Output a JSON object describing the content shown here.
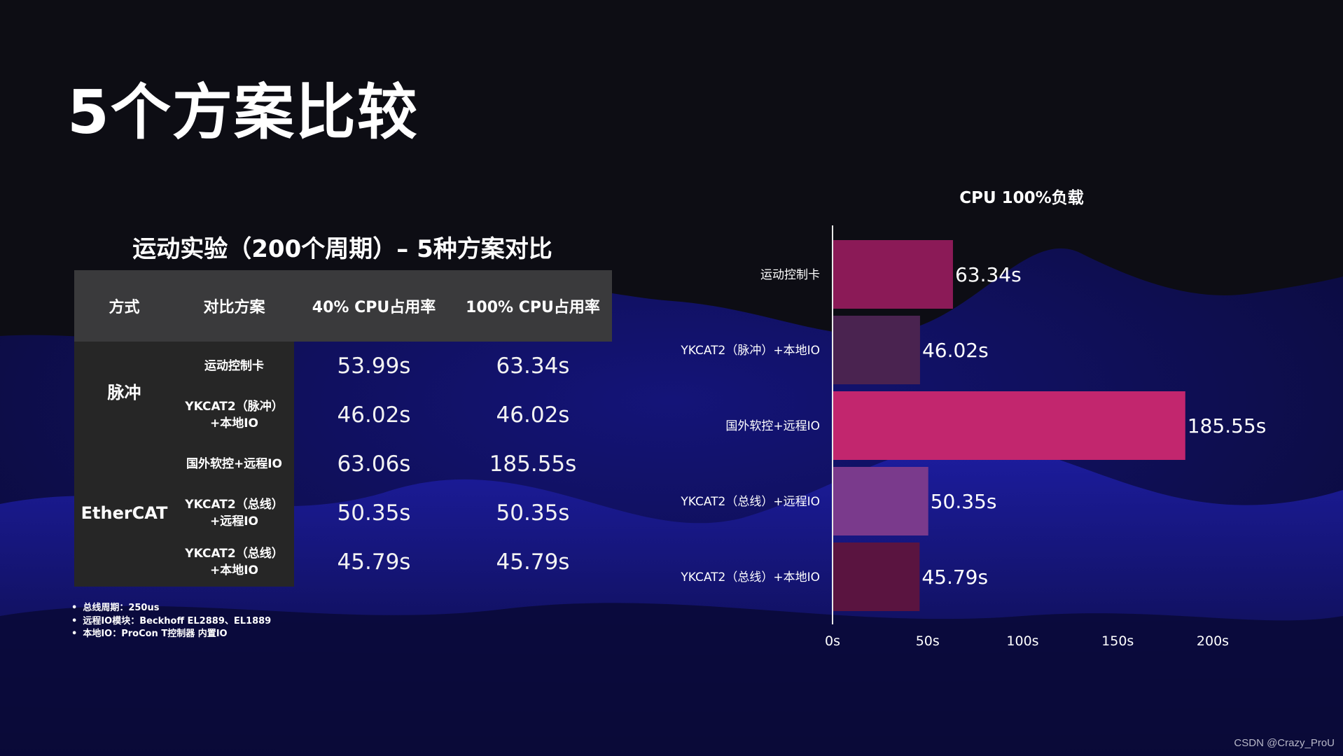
{
  "slide": {
    "title": "5个方案比较",
    "watermark": "CSDN @Crazy_ProU"
  },
  "table": {
    "title": "运动实验（200个周期）– 5种方案对比",
    "headers": [
      "方式",
      "对比方案",
      "40% CPU占用率",
      "100% CPU占用率"
    ],
    "groups": [
      "脉冲",
      "EtherCAT"
    ],
    "rows": [
      {
        "scheme_line1": "运动控制卡",
        "scheme_line2": "",
        "cpu40": "53.99s",
        "cpu100": "63.34s"
      },
      {
        "scheme_line1": "YKCAT2（脉冲）",
        "scheme_line2": "+本地IO",
        "cpu40": "46.02s",
        "cpu100": "46.02s"
      },
      {
        "scheme_line1": "国外软控+远程IO",
        "scheme_line2": "",
        "cpu40": "63.06s",
        "cpu100": "185.55s"
      },
      {
        "scheme_line1": "YKCAT2（总线）",
        "scheme_line2": "+远程IO",
        "cpu40": "50.35s",
        "cpu100": "50.35s"
      },
      {
        "scheme_line1": "YKCAT2（总线）",
        "scheme_line2": "+本地IO",
        "cpu40": "45.79s",
        "cpu100": "45.79s"
      }
    ]
  },
  "notes": [
    "总线周期：250us",
    "远程IO模块：Beckhoff EL2889、EL1889",
    "本地IO：ProCon T控制器 内置IO"
  ],
  "colors": {
    "background": "#0d0d14",
    "wave": "#1a1a8c",
    "header_fill": "#3a3a3c",
    "group_fill": "#262626",
    "bar1": "#8b1a57",
    "bar2": "#4a2350",
    "bar3": "#c2266e",
    "bar4": "#7a3a8c",
    "bar5": "#5a1440"
  },
  "chart_data": {
    "type": "bar",
    "orientation": "horizontal",
    "title": "CPU 100%负载",
    "categories": [
      "运动控制卡",
      "YKCAT2（脉冲）+本地IO",
      "国外软控+远程IO",
      "YKCAT2（总线）+远程IO",
      "YKCAT2（总线）+本地IO"
    ],
    "values": [
      63.34,
      46.02,
      185.55,
      50.35,
      45.79
    ],
    "value_labels": [
      "63.34s",
      "46.02s",
      "185.55s",
      "50.35s",
      "45.79s"
    ],
    "bar_colors": [
      "#8b1a57",
      "#4a2350",
      "#c2266e",
      "#7a3a8c",
      "#5a1440"
    ],
    "xlim": [
      0,
      200
    ],
    "xticks": [
      0,
      50,
      100,
      150,
      200
    ],
    "xtick_labels": [
      "0s",
      "50s",
      "100s",
      "150s",
      "200s"
    ],
    "grid": false,
    "legend": "none"
  }
}
